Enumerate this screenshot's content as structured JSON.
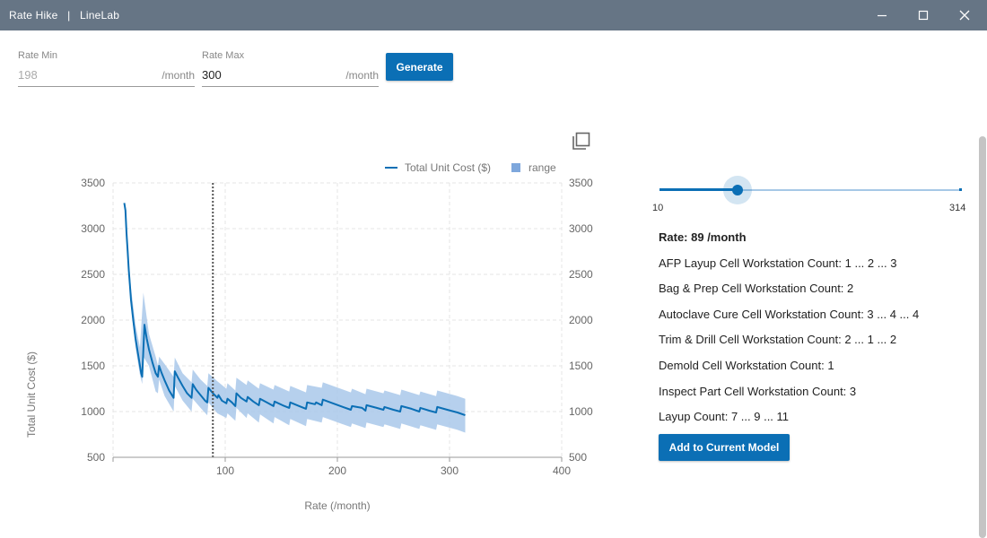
{
  "window": {
    "title": "Rate Hike   |   LineLab",
    "icons": {
      "minimize": "minimize-icon",
      "maximize": "maximize-icon",
      "close": "close-icon"
    }
  },
  "form": {
    "rate_min": {
      "label": "Rate Min",
      "value": "198",
      "suffix": "/month"
    },
    "rate_max": {
      "label": "Rate Max",
      "value": "300",
      "suffix": "/month"
    },
    "generate_label": "Generate"
  },
  "toolbar": {
    "export_icon": "copy-export-icon"
  },
  "colors": {
    "accent": "#0b6fb5",
    "range_fill": "#a9c8ea",
    "titlebar": "#667585"
  },
  "chart_data": {
    "type": "line",
    "xlabel": "Rate (/month)",
    "ylabel": "Total Unit Cost ($)",
    "xlim": [
      0,
      400
    ],
    "ylim": [
      500,
      3500
    ],
    "x_ticks": [
      "100",
      "200",
      "300",
      "400"
    ],
    "y_ticks": [
      "500",
      "1000",
      "1500",
      "2000",
      "2500",
      "3000",
      "3500"
    ],
    "grid": true,
    "legend_position": "top-right",
    "legend": [
      "Total Unit Cost ($)",
      "range"
    ],
    "marker_x": 89,
    "series": [
      {
        "name": "Total Unit Cost ($)",
        "points": [
          [
            10,
            3280
          ],
          [
            11,
            3200
          ],
          [
            12,
            2950
          ],
          [
            13,
            2750
          ],
          [
            14,
            2550
          ],
          [
            15,
            2380
          ],
          [
            16,
            2220
          ],
          [
            18,
            2000
          ],
          [
            20,
            1800
          ],
          [
            22,
            1650
          ],
          [
            24,
            1500
          ],
          [
            25,
            1420
          ],
          [
            26,
            1380
          ],
          [
            27,
            1680
          ],
          [
            28,
            1950
          ],
          [
            30,
            1800
          ],
          [
            32,
            1680
          ],
          [
            35,
            1540
          ],
          [
            38,
            1420
          ],
          [
            40,
            1380
          ],
          [
            41,
            1500
          ],
          [
            43,
            1430
          ],
          [
            46,
            1340
          ],
          [
            50,
            1230
          ],
          [
            54,
            1150
          ],
          [
            55,
            1440
          ],
          [
            58,
            1370
          ],
          [
            62,
            1280
          ],
          [
            66,
            1200
          ],
          [
            70,
            1150
          ],
          [
            71,
            1300
          ],
          [
            74,
            1240
          ],
          [
            78,
            1180
          ],
          [
            82,
            1120
          ],
          [
            84,
            1100
          ],
          [
            85,
            1260
          ],
          [
            89,
            1200
          ],
          [
            93,
            1150
          ],
          [
            94,
            1180
          ],
          [
            97,
            1120
          ],
          [
            101,
            1090
          ],
          [
            102,
            1140
          ],
          [
            106,
            1100
          ],
          [
            109,
            1060
          ],
          [
            110,
            1200
          ],
          [
            114,
            1150
          ],
          [
            119,
            1110
          ],
          [
            120,
            1160
          ],
          [
            125,
            1110
          ],
          [
            130,
            1070
          ],
          [
            131,
            1140
          ],
          [
            137,
            1100
          ],
          [
            143,
            1060
          ],
          [
            144,
            1110
          ],
          [
            151,
            1070
          ],
          [
            157,
            1040
          ],
          [
            158,
            1100
          ],
          [
            166,
            1060
          ],
          [
            172,
            1030
          ],
          [
            173,
            1100
          ],
          [
            180,
            1080
          ],
          [
            181,
            1100
          ],
          [
            186,
            1070
          ],
          [
            187,
            1130
          ],
          [
            196,
            1090
          ],
          [
            205,
            1050
          ],
          [
            212,
            1020
          ],
          [
            213,
            1060
          ],
          [
            222,
            1040
          ],
          [
            225,
            1010
          ],
          [
            226,
            1070
          ],
          [
            235,
            1040
          ],
          [
            241,
            1020
          ],
          [
            242,
            1050
          ],
          [
            250,
            1020
          ],
          [
            256,
            1000
          ],
          [
            257,
            1060
          ],
          [
            266,
            1030
          ],
          [
            273,
            1000
          ],
          [
            274,
            1040
          ],
          [
            282,
            1010
          ],
          [
            288,
            990
          ],
          [
            289,
            1050
          ],
          [
            298,
            1020
          ],
          [
            307,
            990
          ],
          [
            314,
            960
          ]
        ]
      },
      {
        "name": "range",
        "lower": [
          [
            10,
            3280
          ],
          [
            13,
            2700
          ],
          [
            16,
            2150
          ],
          [
            20,
            1700
          ],
          [
            24,
            1400
          ],
          [
            26,
            1300
          ],
          [
            27,
            1600
          ],
          [
            32,
            1500
          ],
          [
            38,
            1220
          ],
          [
            40,
            1200
          ],
          [
            41,
            1350
          ],
          [
            46,
            1170
          ],
          [
            54,
            1000
          ],
          [
            55,
            1280
          ],
          [
            62,
            1120
          ],
          [
            70,
            1000
          ],
          [
            71,
            1140
          ],
          [
            78,
            1040
          ],
          [
            84,
            960
          ],
          [
            85,
            1100
          ],
          [
            93,
            980
          ],
          [
            101,
            930
          ],
          [
            102,
            980
          ],
          [
            109,
            900
          ],
          [
            110,
            1040
          ],
          [
            119,
            930
          ],
          [
            120,
            980
          ],
          [
            130,
            880
          ],
          [
            131,
            970
          ],
          [
            143,
            870
          ],
          [
            144,
            940
          ],
          [
            157,
            850
          ],
          [
            158,
            920
          ],
          [
            172,
            840
          ],
          [
            173,
            920
          ],
          [
            186,
            880
          ],
          [
            187,
            940
          ],
          [
            212,
            830
          ],
          [
            213,
            870
          ],
          [
            225,
            820
          ],
          [
            226,
            880
          ],
          [
            241,
            830
          ],
          [
            242,
            860
          ],
          [
            256,
            810
          ],
          [
            257,
            870
          ],
          [
            273,
            810
          ],
          [
            274,
            850
          ],
          [
            288,
            800
          ],
          [
            289,
            860
          ],
          [
            307,
            800
          ],
          [
            314,
            770
          ]
        ],
        "upper": [
          [
            10,
            3280
          ],
          [
            13,
            2800
          ],
          [
            16,
            2350
          ],
          [
            20,
            1950
          ],
          [
            24,
            1700
          ],
          [
            26,
            2100
          ],
          [
            27,
            2300
          ],
          [
            32,
            1850
          ],
          [
            38,
            1600
          ],
          [
            40,
            1500
          ],
          [
            41,
            1600
          ],
          [
            46,
            1520
          ],
          [
            54,
            1380
          ],
          [
            55,
            1590
          ],
          [
            62,
            1420
          ],
          [
            70,
            1320
          ],
          [
            71,
            1460
          ],
          [
            78,
            1350
          ],
          [
            84,
            1280
          ],
          [
            85,
            1420
          ],
          [
            93,
            1330
          ],
          [
            101,
            1250
          ],
          [
            102,
            1310
          ],
          [
            109,
            1230
          ],
          [
            110,
            1370
          ],
          [
            119,
            1290
          ],
          [
            120,
            1340
          ],
          [
            130,
            1250
          ],
          [
            131,
            1310
          ],
          [
            143,
            1240
          ],
          [
            144,
            1290
          ],
          [
            157,
            1220
          ],
          [
            158,
            1280
          ],
          [
            172,
            1210
          ],
          [
            173,
            1290
          ],
          [
            186,
            1260
          ],
          [
            187,
            1320
          ],
          [
            212,
            1210
          ],
          [
            213,
            1250
          ],
          [
            225,
            1190
          ],
          [
            226,
            1250
          ],
          [
            241,
            1200
          ],
          [
            242,
            1230
          ],
          [
            256,
            1180
          ],
          [
            257,
            1240
          ],
          [
            273,
            1180
          ],
          [
            274,
            1220
          ],
          [
            288,
            1170
          ],
          [
            289,
            1230
          ],
          [
            307,
            1170
          ],
          [
            314,
            1140
          ]
        ]
      }
    ]
  },
  "slider": {
    "min_label": "10",
    "max_label": "314",
    "min": 10,
    "max": 314,
    "value": 89
  },
  "details": {
    "rate": "Rate: 89 /month",
    "lines": [
      "AFP Layup Cell Workstation Count: 1 ... 2 ... 3",
      "Bag & Prep Cell Workstation Count: 2",
      "Autoclave Cure Cell Workstation Count: 3 ... 4 ... 4",
      "Trim & Drill Cell Workstation Count: 2 ... 1 ... 2",
      "Demold Cell Workstation Count: 1",
      "Inspect Part Cell Workstation Count: 3",
      "Layup Count: 7 ... 9 ... 11"
    ],
    "add_label": "Add to Current Model"
  }
}
